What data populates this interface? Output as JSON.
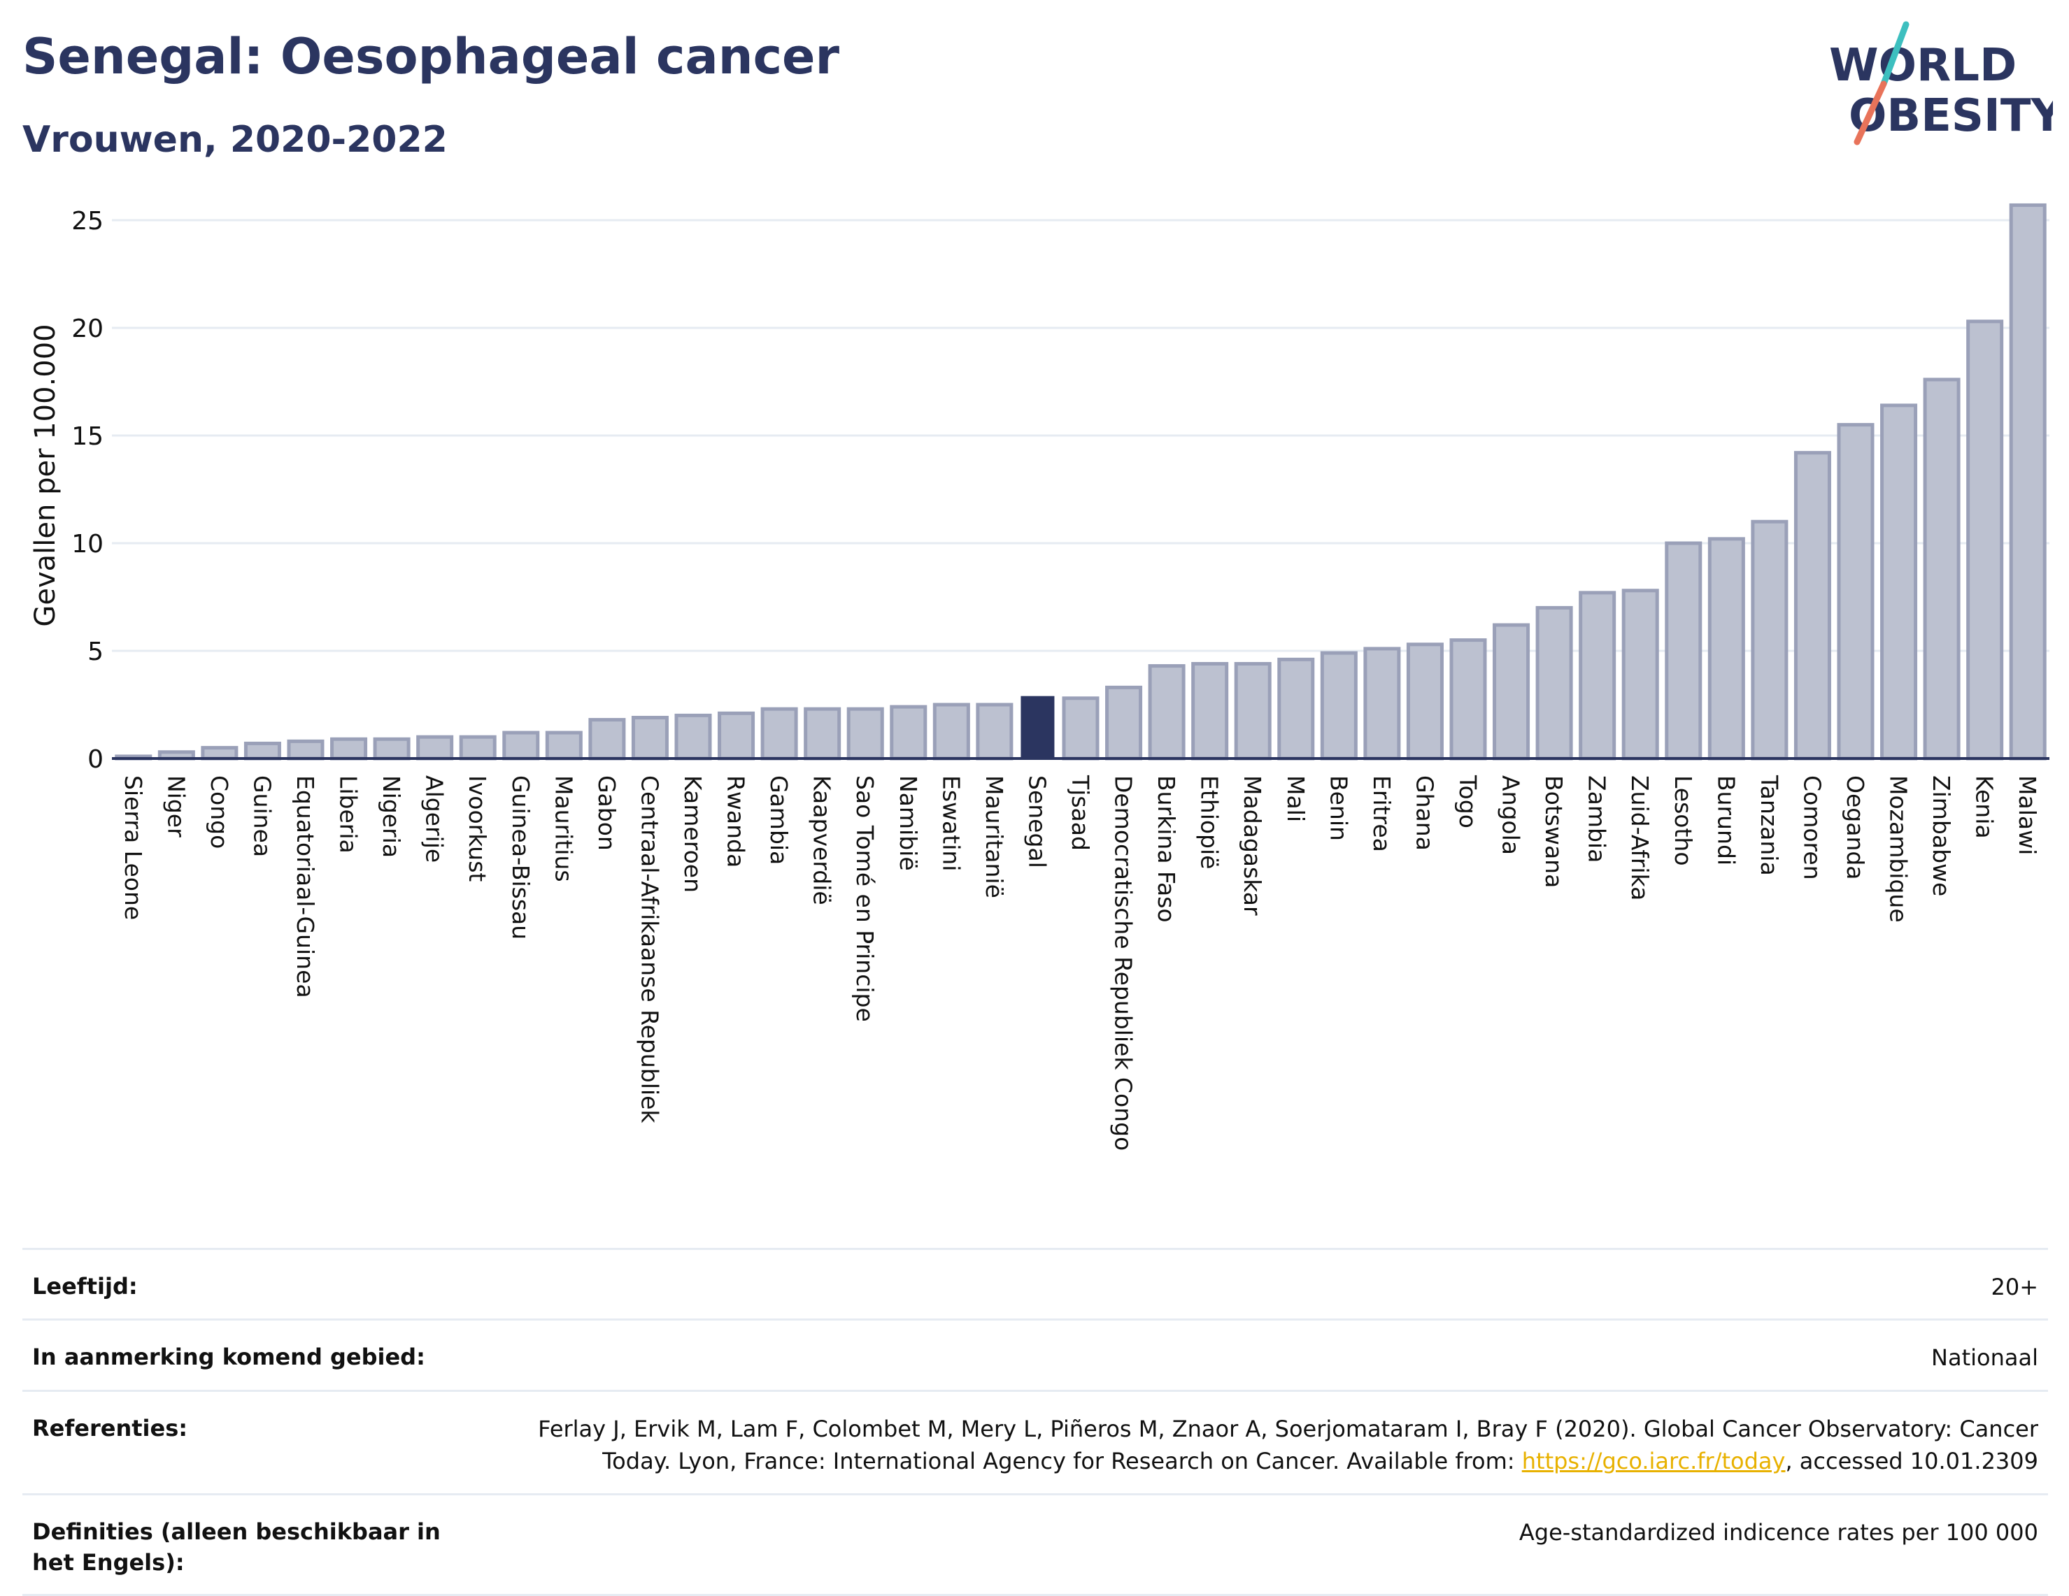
{
  "header": {
    "title": "Senegal: Oesophageal cancer",
    "subtitle": "Vrouwen, 2020-2022"
  },
  "logo": {
    "line1": "WORLD",
    "line2": "OBESITY",
    "colors": {
      "text": "#2b3560",
      "slash_top": "#3dbfbf",
      "slash_bottom": "#e8735a"
    }
  },
  "chart_data": {
    "type": "bar",
    "title": "Senegal: Oesophageal cancer",
    "subtitle": "Vrouwen, 2020-2022",
    "ylabel": "Gevallen per 100.000",
    "xlabel": "",
    "ylim": [
      0,
      27
    ],
    "yticks": [
      0,
      5,
      10,
      15,
      20,
      25
    ],
    "grid": true,
    "highlight": "Senegal",
    "colors": {
      "bar": "#bcc1d0",
      "bar_edge": "#9aa0b8",
      "highlight": "#2b3560",
      "grid": "#e6ebf2",
      "baseline": "#2b3560"
    },
    "categories": [
      "Sierra Leone",
      "Niger",
      "Congo",
      "Guinea",
      "Equatoriaal-Guinea",
      "Liberia",
      "Nigeria",
      "Algerije",
      "Ivoorkust",
      "Guinea-Bissau",
      "Mauritius",
      "Gabon",
      "Centraal-Afrikaanse Republiek",
      "Kameroen",
      "Rwanda",
      "Gambia",
      "Kaapverdië",
      "Sao Tomé en Principe",
      "Namibië",
      "Eswatini",
      "Mauritanië",
      "Senegal",
      "Tjsaad",
      "Democratische Republiek Congo",
      "Burkina Faso",
      "Ethiopië",
      "Madagaskar",
      "Mali",
      "Benin",
      "Eritrea",
      "Ghana",
      "Togo",
      "Angola",
      "Botswana",
      "Zambia",
      "Zuid-Afrika",
      "Lesotho",
      "Burundi",
      "Tanzania",
      "Comoren",
      "Oeganda",
      "Mozambique",
      "Zimbabwe",
      "Kenia",
      "Malawi"
    ],
    "values": [
      0.1,
      0.3,
      0.5,
      0.7,
      0.8,
      0.9,
      0.9,
      1.0,
      1.0,
      1.2,
      1.2,
      1.8,
      1.9,
      2.0,
      2.1,
      2.3,
      2.3,
      2.3,
      2.4,
      2.5,
      2.5,
      2.9,
      2.8,
      3.3,
      4.3,
      4.4,
      4.4,
      4.6,
      4.9,
      5.1,
      5.3,
      5.5,
      6.2,
      7.0,
      7.7,
      7.8,
      10.0,
      10.2,
      11.0,
      14.2,
      15.5,
      16.4,
      17.6,
      20.3,
      25.7
    ]
  },
  "info": [
    {
      "key": "Leeftijd:",
      "value": "20+"
    },
    {
      "key": "In aanmerking komend gebied:",
      "value": "Nationaal"
    },
    {
      "key": "Referenties:",
      "value_before": "Ferlay J, Ervik M, Lam F, Colombet M, Mery L, Piñeros M, Znaor A, Soerjomataram I, Bray F (2020). Global Cancer Observatory: Cancer Today. Lyon, France: International Agency for Research on Cancer. Available from: ",
      "link": "https://gco.iarc.fr/today",
      "value_after": ", accessed 10.01.2309"
    },
    {
      "key": "Definities (alleen beschikbaar in het Engels):",
      "value": "Age-standardized indicence rates per 100 000"
    }
  ]
}
